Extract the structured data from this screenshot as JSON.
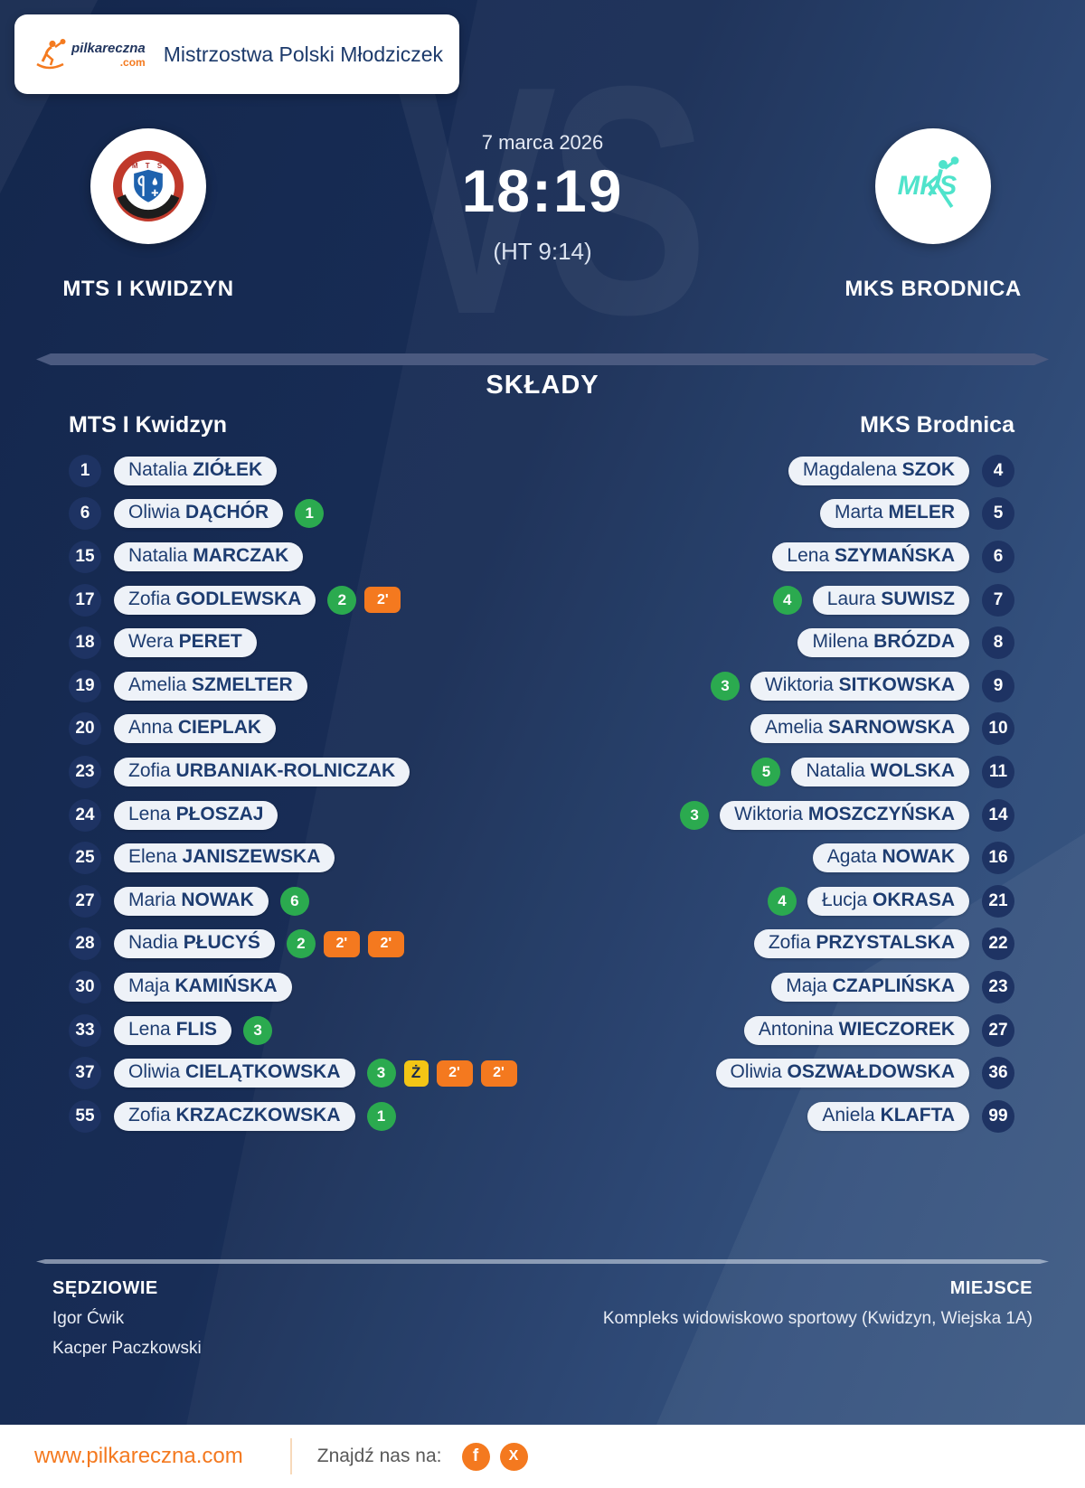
{
  "header": {
    "competition": "Mistrzostwa Polski Młodziczek",
    "brand": {
      "name": "pilkareczna",
      "tld": ".com"
    }
  },
  "match": {
    "date": "7 marca 2026",
    "score": "18:19",
    "halftime": "(HT 9:14)",
    "vs_watermark": "VS",
    "home": {
      "name": "MTS I KWIDZYN"
    },
    "away": {
      "name": "MKS BRODNICA"
    }
  },
  "lineups": {
    "title": "SKŁADY",
    "home": {
      "team": "MTS I Kwidzyn",
      "players": [
        {
          "number": "1",
          "first": "Natalia",
          "last": "ZIÓŁEK",
          "badges": []
        },
        {
          "number": "6",
          "first": "Oliwia",
          "last": "DĄCHÓR",
          "badges": [
            {
              "type": "goals",
              "value": "1"
            }
          ]
        },
        {
          "number": "15",
          "first": "Natalia",
          "last": "MARCZAK",
          "badges": []
        },
        {
          "number": "17",
          "first": "Zofia",
          "last": "GODLEWSKA",
          "badges": [
            {
              "type": "goals",
              "value": "2"
            },
            {
              "type": "susp",
              "value": "2'"
            }
          ]
        },
        {
          "number": "18",
          "first": "Wera",
          "last": "PERET",
          "badges": []
        },
        {
          "number": "19",
          "first": "Amelia",
          "last": "SZMELTER",
          "badges": []
        },
        {
          "number": "20",
          "first": "Anna",
          "last": "CIEPLAK",
          "badges": []
        },
        {
          "number": "23",
          "first": "Zofia",
          "last": "URBANIAK-ROLNICZAK",
          "badges": []
        },
        {
          "number": "24",
          "first": "Lena",
          "last": "PŁOSZAJ",
          "badges": []
        },
        {
          "number": "25",
          "first": "Elena",
          "last": "JANISZEWSKA",
          "badges": []
        },
        {
          "number": "27",
          "first": "Maria",
          "last": "NOWAK",
          "badges": [
            {
              "type": "goals",
              "value": "6"
            }
          ]
        },
        {
          "number": "28",
          "first": "Nadia",
          "last": "PŁUCYŚ",
          "badges": [
            {
              "type": "goals",
              "value": "2"
            },
            {
              "type": "susp",
              "value": "2'"
            },
            {
              "type": "susp",
              "value": "2'"
            }
          ]
        },
        {
          "number": "30",
          "first": "Maja",
          "last": "KAMIŃSKA",
          "badges": []
        },
        {
          "number": "33",
          "first": "Lena",
          "last": "FLIS",
          "badges": [
            {
              "type": "goals",
              "value": "3"
            }
          ]
        },
        {
          "number": "37",
          "first": "Oliwia",
          "last": "CIELĄTKOWSKA",
          "badges": [
            {
              "type": "goals",
              "value": "3"
            },
            {
              "type": "yellow",
              "value": "Ż"
            },
            {
              "type": "susp",
              "value": "2'"
            },
            {
              "type": "susp",
              "value": "2'"
            }
          ]
        },
        {
          "number": "55",
          "first": "Zofia",
          "last": "KRZACZKOWSKA",
          "badges": [
            {
              "type": "goals",
              "value": "1"
            }
          ]
        }
      ]
    },
    "away": {
      "team": "MKS Brodnica",
      "players": [
        {
          "number": "4",
          "first": "Magdalena",
          "last": "SZOK",
          "badges": []
        },
        {
          "number": "5",
          "first": "Marta",
          "last": "MELER",
          "badges": []
        },
        {
          "number": "6",
          "first": "Lena",
          "last": "SZYMAŃSKA",
          "badges": []
        },
        {
          "number": "7",
          "first": "Laura",
          "last": "SUWISZ",
          "badges": [
            {
              "type": "goals",
              "value": "4"
            }
          ]
        },
        {
          "number": "8",
          "first": "Milena",
          "last": "BRÓZDA",
          "badges": []
        },
        {
          "number": "9",
          "first": "Wiktoria",
          "last": "SITKOWSKA",
          "badges": [
            {
              "type": "goals",
              "value": "3"
            }
          ]
        },
        {
          "number": "10",
          "first": "Amelia",
          "last": "SARNOWSKA",
          "badges": []
        },
        {
          "number": "11",
          "first": "Natalia",
          "last": "WOLSKA",
          "badges": [
            {
              "type": "goals",
              "value": "5"
            }
          ]
        },
        {
          "number": "14",
          "first": "Wiktoria",
          "last": "MOSZCZYŃSKA",
          "badges": [
            {
              "type": "goals",
              "value": "3"
            }
          ]
        },
        {
          "number": "16",
          "first": "Agata",
          "last": "NOWAK",
          "badges": []
        },
        {
          "number": "21",
          "first": "Łucja",
          "last": "OKRASA",
          "badges": [
            {
              "type": "goals",
              "value": "4"
            }
          ]
        },
        {
          "number": "22",
          "first": "Zofia",
          "last": "PRZYSTALSKA",
          "badges": []
        },
        {
          "number": "23",
          "first": "Maja",
          "last": "CZAPLIŃSKA",
          "badges": []
        },
        {
          "number": "27",
          "first": "Antonina",
          "last": "WIECZOREK",
          "badges": []
        },
        {
          "number": "36",
          "first": "Oliwia",
          "last": "OSZWAŁDOWSKA",
          "badges": []
        },
        {
          "number": "99",
          "first": "Aniela",
          "last": "KLAFTA",
          "badges": []
        }
      ]
    }
  },
  "officials": {
    "label": "SĘDZIOWIE",
    "referees": [
      "Igor Ćwik",
      "Kacper Paczkowski"
    ]
  },
  "venue": {
    "label": "MIEJSCE",
    "value": "Kompleks widowiskowo sportowy (Kwidzyn, Wiejska 1A)"
  },
  "footer": {
    "site": "www.pilkareczna.com",
    "find_us": "Znajdź nas na:",
    "facebook_glyph": "f",
    "x_glyph": "X"
  },
  "colors": {
    "background_navy": "#16294f",
    "accent_orange": "#f4791f",
    "goals_green": "#2baa4f",
    "suspension_orange": "#f4791f",
    "yellow_card": "#f3c515",
    "pill_bg": "#eef2f8",
    "pill_text": "#1d3c70",
    "mks_teal": "#4fe3cb",
    "mts_red": "#c0392b"
  }
}
